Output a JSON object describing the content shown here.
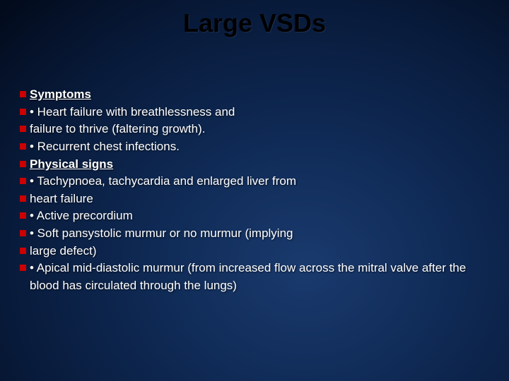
{
  "slide": {
    "title": "Large VSDs",
    "title_color": "#000000",
    "title_fontsize": 36,
    "body_fontsize": 17,
    "body_color": "#ffffff",
    "bullet_color": "#cc0000",
    "background_gradient": [
      "#1a3a6e",
      "#0f2a55",
      "#081a3a",
      "#020a1a"
    ],
    "lines": [
      {
        "text": "Symptoms",
        "heading": true
      },
      {
        "text": "• Heart failure with breathlessness and"
      },
      {
        "text": "failure to thrive (faltering growth)."
      },
      {
        "text": "• Recurrent chest infections."
      },
      {
        "text": "Physical signs",
        "heading": true
      },
      {
        "text": "• Tachypnoea, tachycardia and enlarged liver from"
      },
      {
        "text": "heart failure"
      },
      {
        "text": "• Active precordium"
      },
      {
        "text": "• Soft pansystolic murmur or no murmur (implying"
      },
      {
        "text": "large defect)"
      },
      {
        "text": "• Apical mid-diastolic murmur (from increased flow across the mitral valve after the blood has circulated through the lungs)",
        "wrap": true
      }
    ]
  }
}
